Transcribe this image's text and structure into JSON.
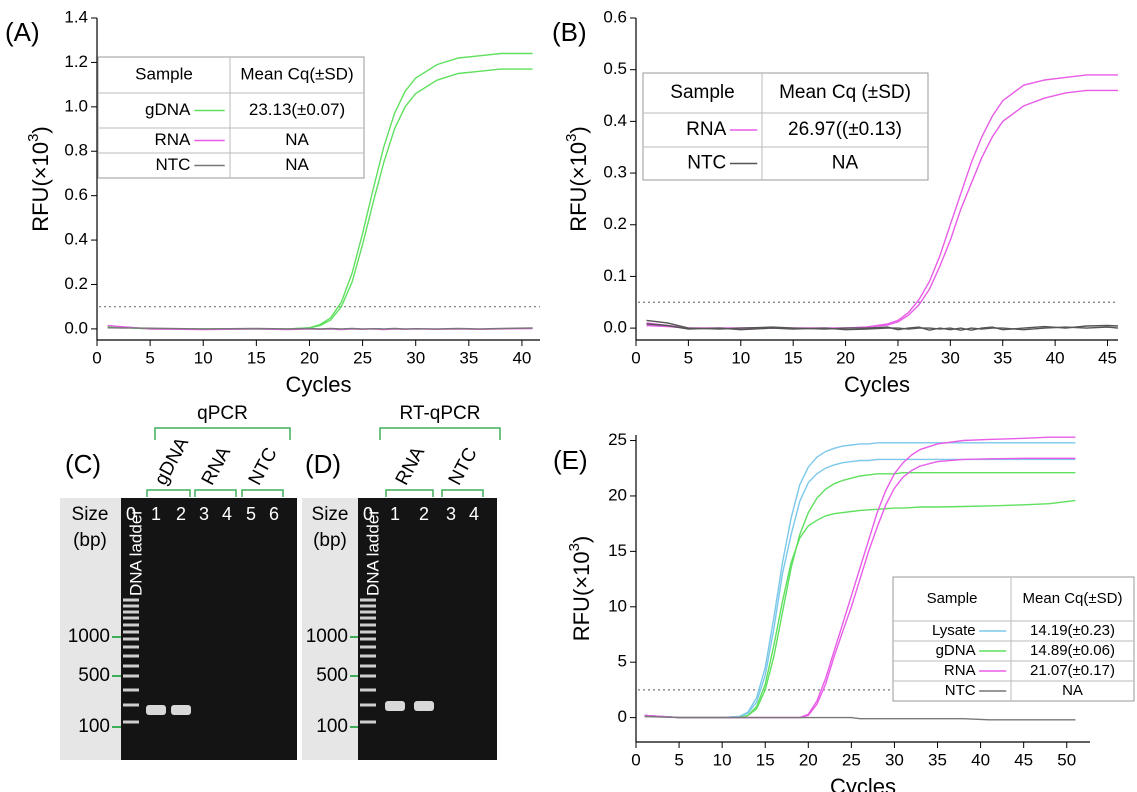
{
  "chart_data": [
    {
      "type": "line",
      "label": "(A)",
      "xlabel": "Cycles",
      "ylabel": {
        "base": "RFU(×10",
        "sup": "3",
        "close": ")"
      },
      "xlim": [
        0,
        41.7
      ],
      "ylim": [
        -0.05,
        1.4
      ],
      "xticks": [
        0,
        5,
        10,
        15,
        20,
        25,
        30,
        35,
        40
      ],
      "yticks": [
        {
          "value": 0,
          "label": "0.0"
        },
        0.2,
        0.4,
        0.6,
        0.8,
        {
          "value": 1,
          "label": "1.0"
        },
        1.2,
        1.4
      ],
      "threshold": 0.1,
      "table_headers": [
        "Sample",
        "Mean Cq(±SD)"
      ],
      "x": [
        1,
        5,
        10,
        15,
        18,
        20,
        21,
        22,
        23,
        24,
        25,
        26,
        27,
        28,
        29,
        30,
        32,
        34,
        36,
        38,
        41
      ],
      "series": [
        {
          "name": "gDNA",
          "color": "#5fe05f",
          "cq": "23.13(±0.07)",
          "replicates": [
            {
              "values": [
                0.01,
                0,
                0,
                0,
                0,
                0.005,
                0.02,
                0.05,
                0.12,
                0.25,
                0.43,
                0.63,
                0.82,
                0.97,
                1.07,
                1.13,
                1.19,
                1.22,
                1.23,
                1.24,
                1.24
              ]
            },
            {
              "values": [
                0.01,
                0,
                0,
                0,
                0,
                0.005,
                0.015,
                0.04,
                0.1,
                0.21,
                0.38,
                0.57,
                0.75,
                0.9,
                1.0,
                1.06,
                1.12,
                1.15,
                1.16,
                1.17,
                1.17
              ]
            }
          ]
        },
        {
          "name": "RNA",
          "color": "#e85ce8",
          "cq": "NA",
          "replicates": [
            {
              "values": [
                0.015,
                0,
                -0.003,
                0,
                -0.003,
                0,
                -0.002,
                0,
                -0.003,
                0,
                -0.002,
                0,
                -0.003,
                0,
                -0.002,
                0,
                -0.002,
                0,
                -0.002,
                0,
                0.002
              ]
            }
          ]
        },
        {
          "name": "NTC",
          "color": "#777777",
          "cq": "NA",
          "replicates": [
            {
              "values": [
                0.005,
                0.003,
                0,
                0.002,
                0,
                0.002,
                0,
                0.002,
                0,
                0.002,
                0,
                0.001,
                0,
                0.002,
                0,
                0.001,
                0,
                0.002,
                0,
                0.002,
                0.004
              ]
            }
          ]
        }
      ]
    },
    {
      "type": "line",
      "label": "(B)",
      "xlabel": "Cycles",
      "ylabel": {
        "base": "RFU(×10",
        "sup": "3",
        "close": ")"
      },
      "xlim": [
        0,
        46
      ],
      "ylim": [
        -0.023,
        0.6
      ],
      "xticks": [
        0,
        5,
        10,
        15,
        20,
        25,
        30,
        35,
        40,
        45
      ],
      "yticks": [
        {
          "value": 0,
          "label": "0.0"
        },
        0.1,
        0.2,
        0.3,
        0.4,
        0.5,
        0.6
      ],
      "threshold": 0.05,
      "table_headers": [
        "Sample",
        "Mean Cq (±SD)"
      ],
      "x": [
        1,
        3,
        5,
        8,
        10,
        13,
        15,
        18,
        20,
        22,
        24,
        25,
        26,
        27,
        28,
        29,
        30,
        31,
        32,
        33,
        34,
        35,
        37,
        39,
        41,
        43,
        45,
        46
      ],
      "series": [
        {
          "name": "RNA",
          "color": "#e85ce8",
          "cq": "26.97((±0.13)",
          "replicates": [
            {
              "values": [
                0.01,
                0.005,
                0,
                0,
                0,
                0,
                0,
                0,
                0,
                0.002,
                0.008,
                0.015,
                0.03,
                0.055,
                0.09,
                0.14,
                0.2,
                0.26,
                0.32,
                0.37,
                0.41,
                0.44,
                0.47,
                0.48,
                0.485,
                0.49,
                0.49,
                0.49
              ]
            },
            {
              "values": [
                0.005,
                0.003,
                0,
                0,
                0,
                0,
                0,
                0,
                0,
                0.002,
                0.006,
                0.012,
                0.025,
                0.045,
                0.075,
                0.12,
                0.17,
                0.23,
                0.28,
                0.33,
                0.37,
                0.4,
                0.43,
                0.445,
                0.455,
                0.46,
                0.46,
                0.46
              ]
            }
          ]
        },
        {
          "name": "NTC",
          "color": "#555555",
          "cq": "NA",
          "replicates": [
            {
              "values": [
                0.015,
                0.01,
                0,
                -0.002,
                0,
                0.002,
                0,
                -0.002,
                0,
                0,
                0.002,
                -0.003,
                0,
                0.002,
                -0.004,
                0,
                -0.003,
                0,
                -0.004,
                0,
                0.002,
                -0.003,
                0,
                0.003,
                0,
                0.004,
                0.005,
                0.004
              ]
            },
            {
              "values": [
                0.008,
                0.005,
                -0.002,
                0,
                -0.003,
                0,
                -0.002,
                0,
                -0.003,
                -0.002,
                0,
                0,
                -0.002,
                0,
                0,
                -0.002,
                0,
                -0.004,
                0,
                -0.002,
                0,
                0,
                -0.003,
                0,
                0.002,
                0,
                0.002,
                0
              ]
            }
          ]
        }
      ]
    },
    {
      "type": "line",
      "label": "(E)",
      "xlabel": "Cycles",
      "ylabel": {
        "base": "RFU(×10",
        "sup": "3",
        "close": ")"
      },
      "xlim": [
        0,
        52.7
      ],
      "ylim": [
        -2.2,
        25.5
      ],
      "xticks": [
        0,
        5,
        10,
        15,
        20,
        25,
        30,
        35,
        40,
        45,
        50
      ],
      "yticks": [
        0,
        5,
        10,
        15,
        20,
        25
      ],
      "threshold": 2.5,
      "table_headers": [
        "Sample",
        "Mean Cq(±SD)"
      ],
      "x": [
        1,
        5,
        10,
        12,
        13,
        14,
        15,
        16,
        17,
        18,
        19,
        20,
        21,
        22,
        23,
        24,
        25,
        26,
        27,
        28,
        29,
        30,
        31,
        32,
        33,
        35,
        38,
        41,
        45,
        48,
        51
      ],
      "series": [
        {
          "name": "Lysate",
          "color": "#7cc8ea",
          "cq": "14.19(±0.23)",
          "replicates": [
            {
              "values": [
                0.2,
                0,
                0,
                0.1,
                0.5,
                1.8,
                4.5,
                9,
                14,
                18,
                21,
                22.6,
                23.5,
                24,
                24.3,
                24.5,
                24.6,
                24.7,
                24.7,
                24.8,
                24.8,
                24.8,
                24.8,
                24.8,
                24.8,
                24.8,
                24.8,
                24.8,
                24.8,
                24.8,
                24.8
              ]
            },
            {
              "values": [
                0.2,
                0,
                0,
                0.1,
                0.4,
                1.4,
                3.8,
                8,
                13,
                16.5,
                19.5,
                21.2,
                22,
                22.5,
                22.8,
                23,
                23.1,
                23.2,
                23.2,
                23.3,
                23.3,
                23.3,
                23.3,
                23.3,
                23.3,
                23.3,
                23.3,
                23.3,
                23.3,
                23.3,
                23.3
              ]
            }
          ]
        },
        {
          "name": "gDNA",
          "color": "#5fe05f",
          "cq": "14.89(±0.06)",
          "replicates": [
            {
              "values": [
                0.2,
                0,
                0,
                0,
                0.2,
                0.8,
                2.5,
                5.5,
                9.5,
                13.5,
                16.5,
                18.5,
                19.8,
                20.6,
                21.1,
                21.4,
                21.6,
                21.8,
                21.9,
                22,
                22,
                22,
                22.1,
                22.1,
                22.1,
                22.1,
                22.1,
                22.1,
                22.1,
                22.1,
                22.1
              ]
            },
            {
              "values": [
                0.2,
                0,
                0,
                0,
                0.2,
                1,
                3,
                6.5,
                10.5,
                14,
                16.2,
                17.3,
                17.8,
                18.2,
                18.4,
                18.5,
                18.6,
                18.7,
                18.75,
                18.8,
                18.85,
                18.9,
                18.9,
                18.95,
                19,
                19,
                19.05,
                19.1,
                19.2,
                19.3,
                19.6
              ]
            }
          ]
        },
        {
          "name": "RNA",
          "color": "#e85ce8",
          "cq": "21.07(±0.17)",
          "replicates": [
            {
              "values": [
                0.2,
                0,
                0,
                0,
                0,
                0,
                0,
                0,
                0,
                0,
                0,
                0.3,
                1.5,
                3.5,
                6,
                8.5,
                11,
                13.5,
                16,
                18.5,
                20.5,
                22,
                23,
                23.7,
                24.2,
                24.7,
                25,
                25.1,
                25.2,
                25.3,
                25.3
              ]
            },
            {
              "values": [
                0.2,
                0,
                0,
                0,
                0,
                0,
                0,
                0,
                0,
                0,
                0,
                0.2,
                1.2,
                3,
                5.5,
                7.8,
                10,
                12.5,
                15,
                17.2,
                19.2,
                20.7,
                21.7,
                22.3,
                22.7,
                23.1,
                23.3,
                23.35,
                23.4,
                23.4,
                23.4
              ]
            }
          ]
        },
        {
          "name": "NTC",
          "color": "#777777",
          "cq": "NA",
          "replicates": [
            {
              "values": [
                0.1,
                0,
                0,
                0,
                0,
                0,
                0,
                0,
                0,
                0,
                0,
                0,
                0,
                0,
                0,
                0,
                0,
                -0.1,
                -0.1,
                -0.1,
                -0.1,
                -0.1,
                -0.1,
                -0.1,
                -0.1,
                -0.1,
                -0.1,
                -0.2,
                -0.2,
                -0.2,
                -0.2
              ]
            }
          ]
        }
      ]
    }
  ],
  "gels": [
    {
      "label": "(C)",
      "assay": "qPCR",
      "groups": [
        "gDNA",
        "RNA",
        "NTC"
      ],
      "size_label": "Size",
      "unit_label": "(bp)",
      "lanes": [
        "0",
        "1",
        "2",
        "3",
        "4",
        "5",
        "6"
      ],
      "ladder": "DNA ladder",
      "markers": [
        "1000",
        "500",
        "100"
      ]
    },
    {
      "label": "(D)",
      "assay": "RT-qPCR",
      "groups": [
        "RNA",
        "NTC"
      ],
      "size_label": "Size",
      "unit_label": "(bp)",
      "lanes": [
        "0",
        "1",
        "2",
        "3",
        "4"
      ],
      "ladder": "DNA ladder",
      "markers": [
        "1000",
        "500",
        "100"
      ]
    }
  ]
}
